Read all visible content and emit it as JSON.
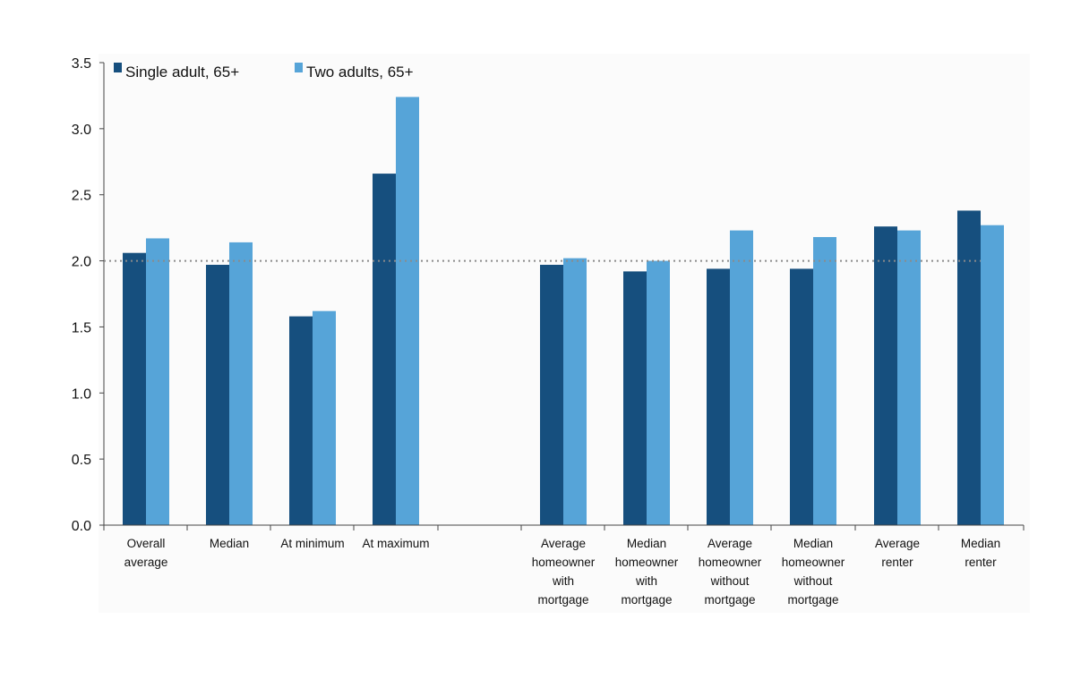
{
  "chart_data": {
    "type": "bar",
    "title": "",
    "xlabel": "",
    "ylabel": "",
    "ylim": [
      0,
      3.5
    ],
    "yticks": [
      "0.0",
      "0.5",
      "1.0",
      "1.5",
      "2.0",
      "2.5",
      "3.0",
      "3.5"
    ],
    "reference_line": {
      "value": 2.0,
      "style": "dotted"
    },
    "legend_placement": "top-left",
    "grid": false,
    "categories": [
      [
        "Overall",
        "average"
      ],
      [
        "Median"
      ],
      [
        "At minimum"
      ],
      [
        "At maximum"
      ],
      [
        "Average",
        "homeowner",
        "with",
        "mortgage"
      ],
      [
        "Median",
        "homeowner",
        "with",
        "mortgage"
      ],
      [
        "Average",
        "homeowner",
        "without",
        "mortgage"
      ],
      [
        "Median",
        "homeowner",
        "without",
        "mortgage"
      ],
      [
        "Average",
        "renter"
      ],
      [
        "Median",
        "renter"
      ]
    ],
    "series": [
      {
        "name": "Single adult, 65+",
        "color": "#164f7e",
        "values": [
          2.06,
          1.97,
          1.58,
          2.66,
          1.97,
          1.92,
          1.94,
          1.94,
          2.26,
          2.38
        ]
      },
      {
        "name": "Two adults, 65+",
        "color": "#56a4d8",
        "values": [
          2.17,
          2.14,
          1.62,
          3.24,
          2.02,
          2.0,
          2.23,
          2.18,
          2.23,
          2.27
        ]
      }
    ]
  }
}
